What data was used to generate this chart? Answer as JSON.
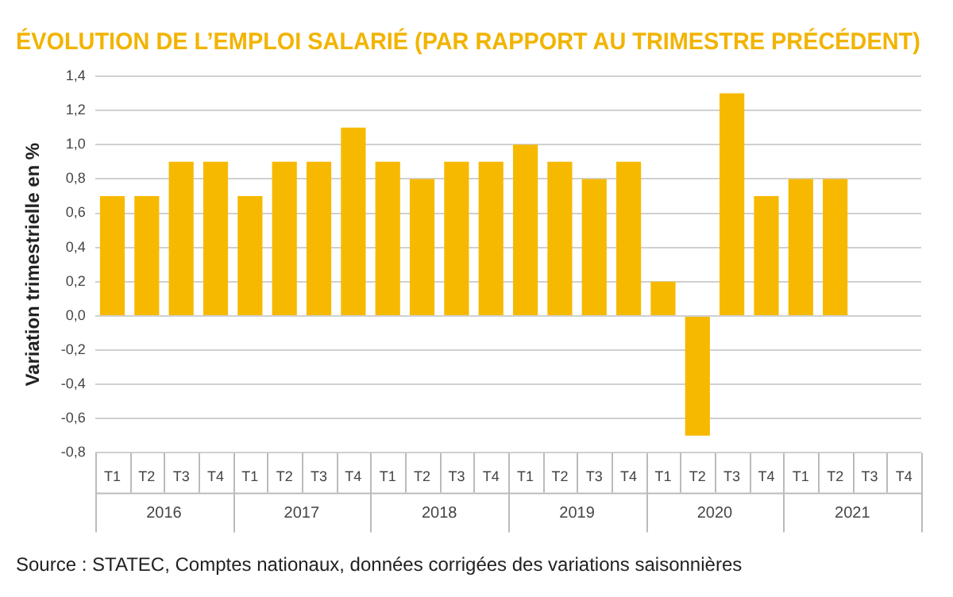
{
  "chart_data": {
    "type": "bar",
    "title": "ÉVOLUTION DE L’EMPLOI SALARIÉ (PAR RAPPORT AU TRIMESTRE PRÉCÉDENT)",
    "ylabel": "Variation trimestrielle en %",
    "categories": [
      "T1",
      "T2",
      "T3",
      "T4",
      "T1",
      "T2",
      "T3",
      "T4",
      "T1",
      "T2",
      "T3",
      "T4",
      "T1",
      "T2",
      "T3",
      "T4",
      "T1",
      "T2",
      "T3",
      "T4",
      "T1",
      "T2",
      "T3",
      "T4"
    ],
    "values": [
      0.7,
      0.7,
      0.9,
      0.9,
      0.7,
      0.9,
      0.9,
      1.1,
      0.9,
      0.8,
      0.9,
      0.9,
      1.0,
      0.9,
      0.8,
      0.9,
      0.2,
      -0.7,
      1.3,
      0.7,
      0.8,
      0.8,
      null,
      null
    ],
    "color": "#f7b900",
    "ylim": [
      -0.8,
      1.4
    ],
    "yticks": [
      {
        "value": -0.8,
        "label": "-0,8"
      },
      {
        "value": -0.6,
        "label": "-0,6"
      },
      {
        "value": -0.4,
        "label": "-0,4"
      },
      {
        "value": -0.2,
        "label": "-0,2"
      },
      {
        "value": 0,
        "label": "0,0"
      },
      {
        "value": 0.2,
        "label": "0,2"
      },
      {
        "value": 0.4,
        "label": "0,4"
      },
      {
        "value": 0.6,
        "label": "0,6"
      },
      {
        "value": 0.8,
        "label": "0,8"
      },
      {
        "value": 1.0,
        "label": "1,0"
      },
      {
        "value": 1.2,
        "label": "1,2"
      },
      {
        "value": 1.4,
        "label": "1,4"
      }
    ],
    "grid": "y",
    "annotations": [
      "2016",
      "2017",
      "2018",
      "2019",
      "2020",
      "2021",
      "Source : STATEC, Comptes nationaux, données corrigées des variations saisonnières"
    ]
  }
}
